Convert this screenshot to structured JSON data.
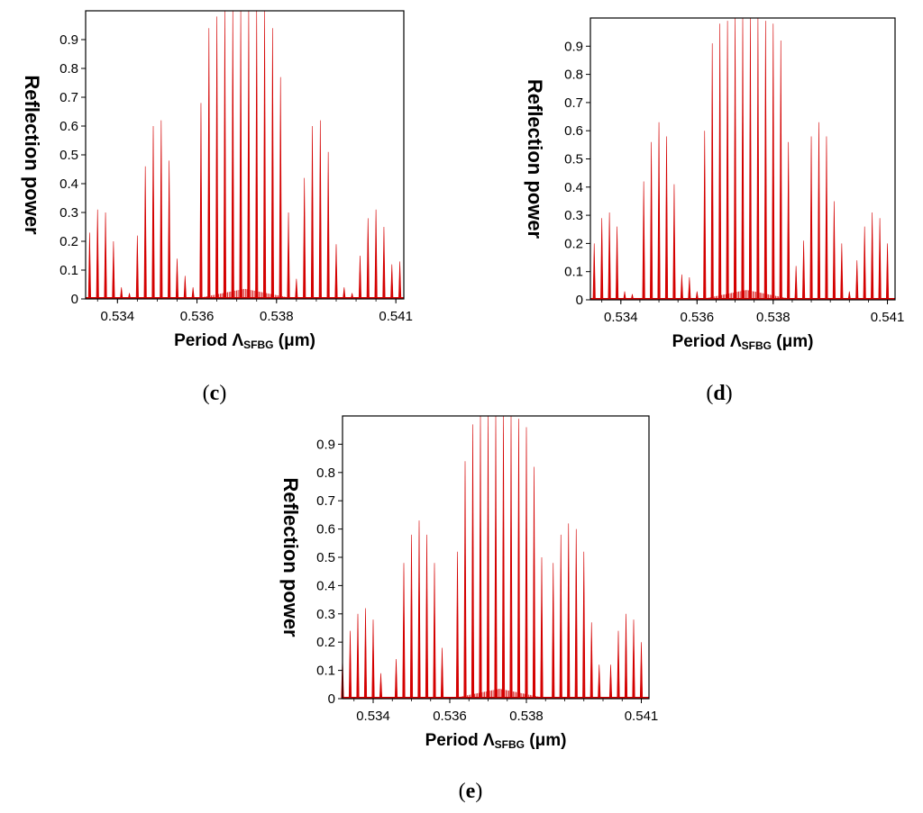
{
  "colors": {
    "series": "#d40000",
    "axis": "#000000"
  },
  "chart_data": [
    {
      "id": "c",
      "type": "bar",
      "caption": {
        "open": "(",
        "letter": "c",
        "close": ")"
      },
      "xlabel": {
        "main": "Period Λ",
        "sub": "SFBG",
        "unit": " (μm)"
      },
      "ylabel": "Reflection power",
      "xlim": [
        0.5332,
        0.5412
      ],
      "ylim": [
        0,
        1.0
      ],
      "xticks": [
        "0.534",
        "0.536",
        "0.538",
        "0.541"
      ],
      "yticks": [
        "0",
        "0.1",
        "0.2",
        "0.3",
        "0.4",
        "0.5",
        "0.6",
        "0.7",
        "0.8",
        "0.9"
      ],
      "lobes": [
        {
          "x": [
            0.5333,
            0.5335,
            0.5337,
            0.5339,
            0.5341,
            0.5343
          ],
          "y": [
            0.23,
            0.31,
            0.3,
            0.2,
            0.04,
            0.02
          ]
        },
        {
          "x": [
            0.5345,
            0.5347,
            0.5349,
            0.5351,
            0.5353,
            0.5355,
            0.5357,
            0.5359
          ],
          "y": [
            0.22,
            0.46,
            0.6,
            0.62,
            0.48,
            0.14,
            0.08,
            0.04
          ]
        },
        {
          "x": [
            0.5361,
            0.5363,
            0.5365,
            0.5367,
            0.5369,
            0.5371,
            0.5373,
            0.5375,
            0.5377,
            0.5379,
            0.5381,
            0.5383
          ],
          "y": [
            0.68,
            0.94,
            0.98,
            1.0,
            1.0,
            1.0,
            1.0,
            1.0,
            1.0,
            0.94,
            0.77,
            0.3
          ]
        },
        {
          "x": [
            0.5385,
            0.5387,
            0.5389,
            0.5391,
            0.5393,
            0.5395,
            0.5397,
            0.5399
          ],
          "y": [
            0.07,
            0.42,
            0.6,
            0.62,
            0.51,
            0.19,
            0.04,
            0.02
          ]
        },
        {
          "x": [
            0.5401,
            0.5403,
            0.5405,
            0.5407,
            0.5409,
            0.5411
          ],
          "y": [
            0.15,
            0.28,
            0.31,
            0.25,
            0.12,
            0.13
          ]
        }
      ]
    },
    {
      "id": "d",
      "type": "bar",
      "caption": {
        "open": "(",
        "letter": "d",
        "close": ")"
      },
      "xlabel": {
        "main": "Period Λ",
        "sub": "SFBG",
        "unit": " (μm)"
      },
      "ylabel": "Reflection power",
      "xlim": [
        0.5332,
        0.5412
      ],
      "ylim": [
        0,
        1.0
      ],
      "xticks": [
        "0.534",
        "0.536",
        "0.538",
        "0.541"
      ],
      "yticks": [
        "0",
        "0.1",
        "0.2",
        "0.3",
        "0.4",
        "0.5",
        "0.6",
        "0.7",
        "0.8",
        "0.9"
      ],
      "lobes": [
        {
          "x": [
            0.5333,
            0.5335,
            0.5337,
            0.5339,
            0.5341,
            0.5343
          ],
          "y": [
            0.2,
            0.29,
            0.31,
            0.26,
            0.03,
            0.02
          ]
        },
        {
          "x": [
            0.5346,
            0.5348,
            0.535,
            0.5352,
            0.5354,
            0.5356,
            0.5358,
            0.536
          ],
          "y": [
            0.42,
            0.56,
            0.63,
            0.58,
            0.41,
            0.09,
            0.08,
            0.03
          ]
        },
        {
          "x": [
            0.5362,
            0.5364,
            0.5366,
            0.5368,
            0.537,
            0.5372,
            0.5374,
            0.5376,
            0.5378,
            0.538,
            0.5382,
            0.5384
          ],
          "y": [
            0.6,
            0.91,
            0.98,
            0.99,
            1.0,
            1.0,
            1.0,
            1.0,
            0.99,
            0.98,
            0.92,
            0.56
          ]
        },
        {
          "x": [
            0.5386,
            0.5388,
            0.539,
            0.5392,
            0.5394,
            0.5396,
            0.5398,
            0.54
          ],
          "y": [
            0.12,
            0.21,
            0.58,
            0.63,
            0.58,
            0.35,
            0.2,
            0.03
          ]
        },
        {
          "x": [
            0.5402,
            0.5404,
            0.5406,
            0.5408,
            0.541
          ],
          "y": [
            0.14,
            0.26,
            0.31,
            0.29,
            0.2
          ]
        }
      ]
    },
    {
      "id": "e",
      "type": "bar",
      "caption": {
        "open": "(",
        "letter": "e",
        "close": ")"
      },
      "xlabel": {
        "main": "Period Λ",
        "sub": "SFBG",
        "unit": " (μm)"
      },
      "ylabel": "Reflection power",
      "xlim": [
        0.5332,
        0.5412
      ],
      "ylim": [
        0,
        1.0
      ],
      "xticks": [
        "0.534",
        "0.536",
        "0.538",
        "0.541"
      ],
      "yticks": [
        "0",
        "0.1",
        "0.2",
        "0.3",
        "0.4",
        "0.5",
        "0.6",
        "0.7",
        "0.8",
        "0.9"
      ],
      "lobes": [
        {
          "x": [
            0.5332,
            0.5334,
            0.5336,
            0.5338,
            0.534,
            0.5342
          ],
          "y": [
            0.15,
            0.24,
            0.3,
            0.32,
            0.28,
            0.09
          ]
        },
        {
          "x": [
            0.5346,
            0.5348,
            0.535,
            0.5352,
            0.5354,
            0.5356,
            0.5358
          ],
          "y": [
            0.14,
            0.48,
            0.58,
            0.63,
            0.58,
            0.48,
            0.18
          ]
        },
        {
          "x": [
            0.5362,
            0.5364,
            0.5366,
            0.5368,
            0.537,
            0.5372,
            0.5374,
            0.5376,
            0.5378,
            0.538,
            0.5382,
            0.5384
          ],
          "y": [
            0.52,
            0.84,
            0.97,
            1.0,
            1.0,
            1.0,
            1.0,
            1.0,
            0.99,
            0.96,
            0.82,
            0.5
          ]
        },
        {
          "x": [
            0.5387,
            0.5389,
            0.5391,
            0.5393,
            0.5395,
            0.5397,
            0.5399
          ],
          "y": [
            0.48,
            0.58,
            0.62,
            0.6,
            0.52,
            0.27,
            0.12
          ]
        },
        {
          "x": [
            0.5402,
            0.5404,
            0.5406,
            0.5408,
            0.541
          ],
          "y": [
            0.12,
            0.24,
            0.3,
            0.28,
            0.2
          ]
        }
      ]
    }
  ]
}
